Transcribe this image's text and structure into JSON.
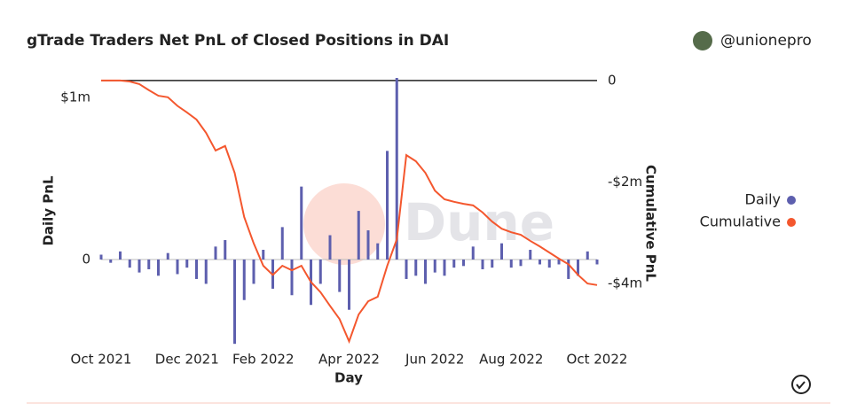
{
  "chart_data": {
    "type": "bar-line",
    "title": "gTrade Traders Net PnL of Closed Positions in DAI",
    "author": "@unionepro",
    "watermark": "Dune",
    "x_label": "Day",
    "y_label": "Daily PnL",
    "y2_label": "Cumulative PnL",
    "categories": [
      "Oct 2021",
      null,
      null,
      null,
      null,
      null,
      null,
      null,
      null,
      "Dec 2021",
      null,
      null,
      null,
      null,
      null,
      null,
      null,
      "Feb 2022",
      null,
      null,
      null,
      null,
      null,
      null,
      null,
      null,
      "Apr 2022",
      null,
      null,
      null,
      null,
      null,
      null,
      null,
      null,
      "Jun 2022",
      null,
      null,
      null,
      null,
      null,
      null,
      null,
      "Aug 2022",
      null,
      null,
      null,
      null,
      null,
      null,
      null,
      null,
      "Oct 2022"
    ],
    "ylim": [
      -530000,
      1120000
    ],
    "yticks": [
      {
        "value": 0,
        "label": "0"
      },
      {
        "value": 1000000,
        "label": "$1m"
      }
    ],
    "y2lim": [
      -5220000,
      50000
    ],
    "y2ticks": [
      {
        "value": 0,
        "label": "0"
      },
      {
        "value": -2000000,
        "label": "-$2m"
      },
      {
        "value": -4000000,
        "label": "-$4m"
      }
    ],
    "series": [
      {
        "name": "Daily",
        "color": "#5d5fae",
        "axis": "y",
        "values": [
          30000,
          -20000,
          50000,
          -50000,
          -80000,
          -60000,
          -100000,
          40000,
          -90000,
          -50000,
          -120000,
          -150000,
          80000,
          120000,
          -520000,
          -250000,
          -150000,
          60000,
          -180000,
          200000,
          -220000,
          450000,
          -280000,
          -150000,
          150000,
          -200000,
          -310000,
          300000,
          180000,
          100000,
          670000,
          1120000,
          -120000,
          -100000,
          -150000,
          -80000,
          -100000,
          -50000,
          -40000,
          80000,
          -60000,
          -50000,
          100000,
          -50000,
          -40000,
          60000,
          -30000,
          -50000,
          -30000,
          -120000,
          -100000,
          50000,
          -30000
        ]
      },
      {
        "name": "Cumulative",
        "color": "#f4572e",
        "axis": "y2",
        "values": [
          0,
          0,
          0,
          -20000,
          -70000,
          -190000,
          -300000,
          -330000,
          -500000,
          -630000,
          -770000,
          -1030000,
          -1380000,
          -1290000,
          -1820000,
          -2690000,
          -3210000,
          -3650000,
          -3830000,
          -3650000,
          -3740000,
          -3650000,
          -3970000,
          -4170000,
          -4440000,
          -4700000,
          -5140000,
          -4610000,
          -4350000,
          -4260000,
          -3650000,
          -3130000,
          -1470000,
          -1590000,
          -1820000,
          -2170000,
          -2340000,
          -2390000,
          -2430000,
          -2460000,
          -2600000,
          -2780000,
          -2920000,
          -2990000,
          -3040000,
          -3160000,
          -3270000,
          -3390000,
          -3510000,
          -3620000,
          -3830000,
          -4000000,
          -4030000
        ]
      }
    ],
    "legend": "right"
  }
}
